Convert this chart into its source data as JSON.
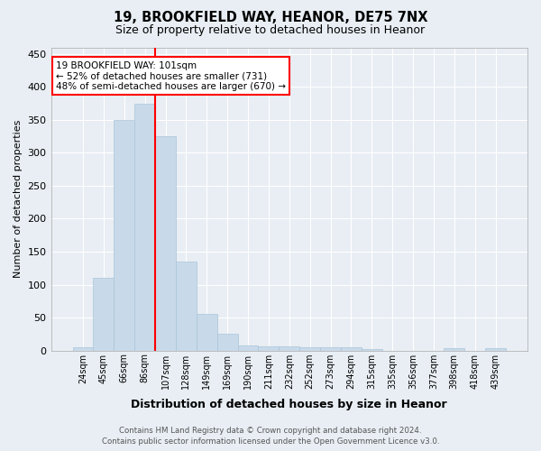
{
  "title1": "19, BROOKFIELD WAY, HEANOR, DE75 7NX",
  "title2": "Size of property relative to detached houses in Heanor",
  "xlabel": "Distribution of detached houses by size in Heanor",
  "ylabel": "Number of detached properties",
  "bar_labels": [
    "24sqm",
    "45sqm",
    "66sqm",
    "86sqm",
    "107sqm",
    "128sqm",
    "149sqm",
    "169sqm",
    "190sqm",
    "211sqm",
    "232sqm",
    "252sqm",
    "273sqm",
    "294sqm",
    "315sqm",
    "335sqm",
    "356sqm",
    "377sqm",
    "398sqm",
    "418sqm",
    "439sqm"
  ],
  "bar_values": [
    5,
    110,
    350,
    375,
    325,
    135,
    55,
    25,
    8,
    6,
    6,
    5,
    5,
    5,
    2,
    0,
    0,
    0,
    4,
    0,
    3
  ],
  "bar_color": "#c8daea",
  "bar_edgecolor": "#aac4d8",
  "vline_color": "red",
  "vline_x": 3.5,
  "background_color": "#e8eef4",
  "grid_color": "#ffffff",
  "ylim": [
    0,
    460
  ],
  "yticks": [
    0,
    50,
    100,
    150,
    200,
    250,
    300,
    350,
    400,
    450
  ],
  "annotation_line1": "19 BROOKFIELD WAY: 101sqm",
  "annotation_line2": "← 52% of detached houses are smaller (731)",
  "annotation_line3": "48% of semi-detached houses are larger (670) →",
  "annotation_box_color": "white",
  "annotation_box_edgecolor": "red",
  "footer1": "Contains HM Land Registry data © Crown copyright and database right 2024.",
  "footer2": "Contains public sector information licensed under the Open Government Licence v3.0."
}
